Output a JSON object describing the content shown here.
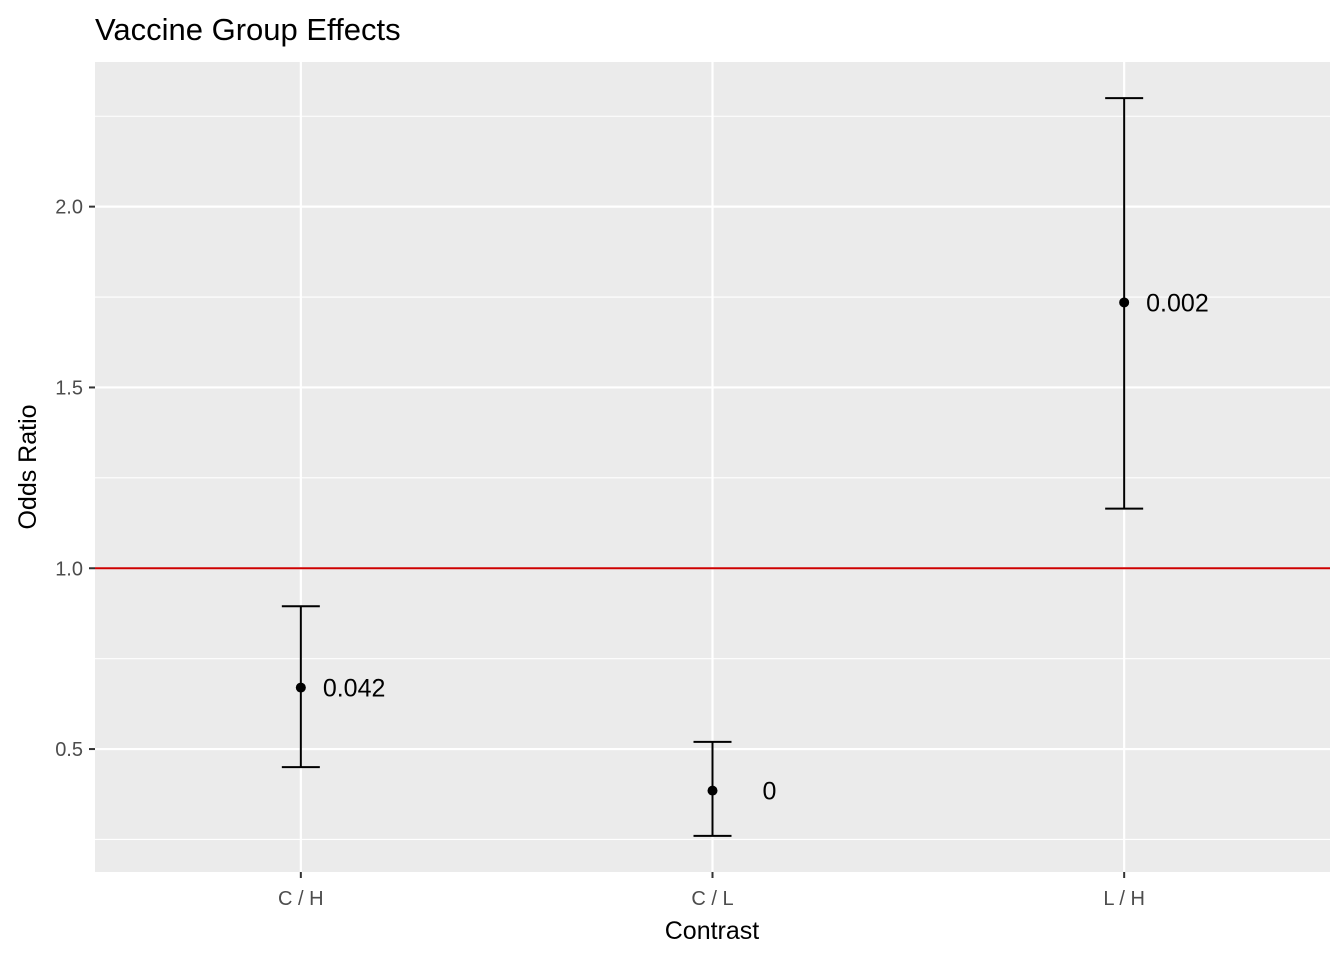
{
  "chart_data": {
    "type": "scatter",
    "title": "Vaccine Group Effects",
    "xlabel": "Contrast",
    "ylabel": "Odds Ratio",
    "categories": [
      "C / H",
      "C / L",
      "L / H"
    ],
    "series": [
      {
        "estimate": [
          0.67,
          0.385,
          1.735
        ],
        "lower": [
          0.45,
          0.26,
          1.165
        ],
        "upper": [
          0.895,
          0.52,
          2.3
        ],
        "labels": [
          "0.042",
          "0",
          "0.002"
        ]
      }
    ],
    "reference_line": {
      "y": 1.0,
      "color": "#cc0000"
    },
    "ylim": [
      0.16,
      2.4
    ],
    "yticks": [
      0.5,
      1.0,
      1.5,
      2.0
    ],
    "ytick_labels": [
      "0.5",
      "1.0",
      "1.5",
      "2.0"
    ],
    "grid": true,
    "panel_color": "#ebebeb",
    "grid_color": "#ffffff"
  }
}
